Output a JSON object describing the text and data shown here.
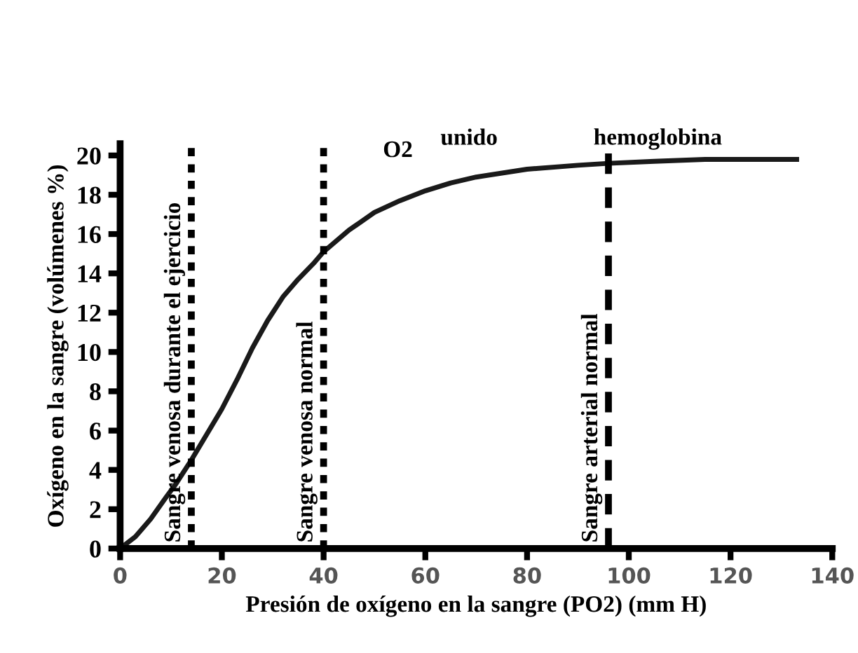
{
  "chart_data": {
    "type": "line",
    "xlabel": "Presión de oxígeno en la sangre (PO2) (mm H)",
    "ylabel": "Oxígeno en la sangre (volúmenes %)",
    "x": [
      0,
      3,
      6,
      9,
      11,
      14,
      17,
      20,
      23,
      26,
      29,
      32,
      35,
      38,
      40,
      45,
      50,
      55,
      60,
      65,
      70,
      80,
      90,
      96,
      105,
      115,
      125,
      133
    ],
    "series": [
      {
        "color": "#1a1a1a",
        "values": [
          0,
          0.6,
          1.5,
          2.6,
          3.3,
          4.5,
          5.8,
          7.1,
          8.6,
          10.2,
          11.6,
          12.8,
          13.7,
          14.5,
          15.1,
          16.2,
          17.1,
          17.7,
          18.2,
          18.6,
          18.9,
          19.3,
          19.5,
          19.6,
          19.7,
          19.8,
          19.8,
          19.8
        ]
      }
    ],
    "xlim": [
      0,
      140
    ],
    "ylim": [
      0,
      20.6
    ],
    "xticks": [
      0,
      20,
      40,
      60,
      80,
      100,
      120,
      140
    ],
    "yticks": [
      0,
      2,
      4,
      6,
      8,
      10,
      12,
      14,
      16,
      18,
      20
    ],
    "ref_lines": [
      {
        "axis": "x",
        "value": 14,
        "label": "Sangre venosa durante el ejercicio",
        "line_style": "dotted",
        "color": "#000000"
      },
      {
        "axis": "x",
        "value": 40,
        "label": "Sangre venosa normal",
        "line_style": "dotted",
        "color": "#000000"
      },
      {
        "axis": "x",
        "value": 96,
        "label": "Sangre arterial normal",
        "line_style": "dashed",
        "color": "#000000"
      }
    ],
    "annotations": [
      "O2",
      "unido",
      "hemoglobina"
    ],
    "grid": false,
    "legend": false,
    "marker": "none",
    "line_style": "solid"
  }
}
